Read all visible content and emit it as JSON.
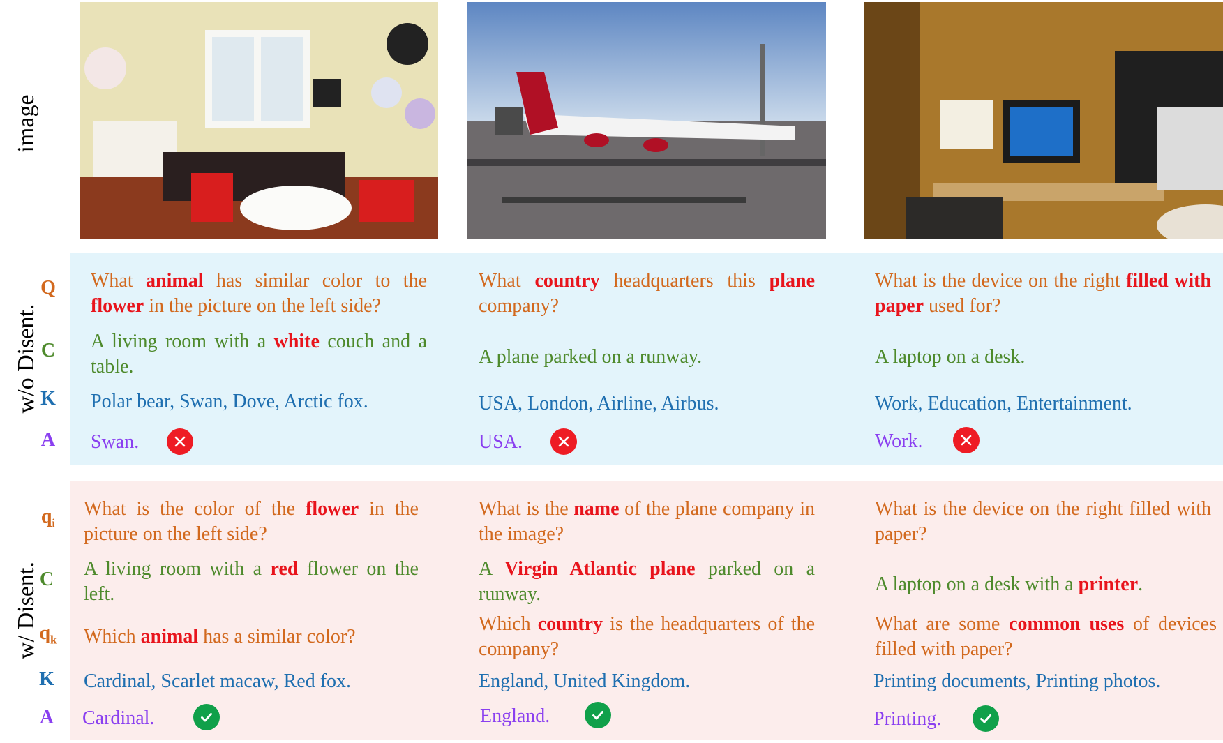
{
  "row_labels": {
    "image": "image",
    "without": "w/o Disent.",
    "with": "w/ Disent."
  },
  "tags": {
    "q": "Q",
    "c": "C",
    "k": "K",
    "a": "A",
    "qi": "q",
    "qi_sub": "i",
    "qk": "q",
    "qk_sub": "k"
  },
  "columns": [
    {
      "photo": "living-room-photo",
      "wo": {
        "q": [
          "What ",
          "animal",
          " has similar color to the ",
          "flower",
          " in the picture on the left side?"
        ],
        "c": [
          "A living room with a ",
          "white",
          " couch and a table."
        ],
        "k": "Polar bear, Swan, Dove, Arctic fox.",
        "a": "Swan."
      },
      "w": {
        "qi": [
          "What is the color of the ",
          "flower",
          " in the picture on the left side?"
        ],
        "c": [
          "A living room with a ",
          "red",
          " flower on the left."
        ],
        "qk": [
          "Which ",
          "animal",
          " has a similar color?"
        ],
        "k": "Cardinal, Scarlet macaw, Red fox.",
        "a": "Cardinal."
      }
    },
    {
      "photo": "airplane-photo",
      "wo": {
        "q": [
          "What ",
          "country",
          " headquarters this ",
          "plane",
          " company?"
        ],
        "c": [
          "A plane parked on a runway."
        ],
        "k": "USA, London, Airline, Airbus.",
        "a": "USA."
      },
      "w": {
        "qi": [
          "What is the ",
          "name",
          " of the plane  company in the image?"
        ],
        "c": [
          "A ",
          "Virgin Atlantic plane",
          " parked on a runway."
        ],
        "qk": [
          "Which ",
          "country",
          " is the headquarters of the company?"
        ],
        "k": "England, United Kingdom.",
        "a": "England."
      }
    },
    {
      "photo": "desk-laptop-photo",
      "wo": {
        "q": [
          "What is the device on the right ",
          "filled with paper",
          " used for?"
        ],
        "c": [
          "A laptop on a desk."
        ],
        "k": "Work, Education, Entertainment.",
        "a": "Work."
      },
      "w": {
        "qi": [
          "What is the device on the right filled with paper?"
        ],
        "c": [
          "A laptop on a desk with a ",
          "printer",
          "."
        ],
        "qk": [
          "What are some ",
          "common uses",
          " of devices filled with paper?"
        ],
        "k": "Printing documents, Printing photos.",
        "a": "Printing."
      }
    }
  ],
  "marks": {
    "wrong": "cross-icon",
    "right": "check-icon"
  },
  "colors": {
    "question": "#d2691e",
    "caption": "#4e8a2c",
    "knowledge": "#1f6fb0",
    "answer": "#8a3ff0",
    "highlight": "#e8141c",
    "blue_band": "#e3f4fb",
    "pink_band": "#fcedec"
  }
}
